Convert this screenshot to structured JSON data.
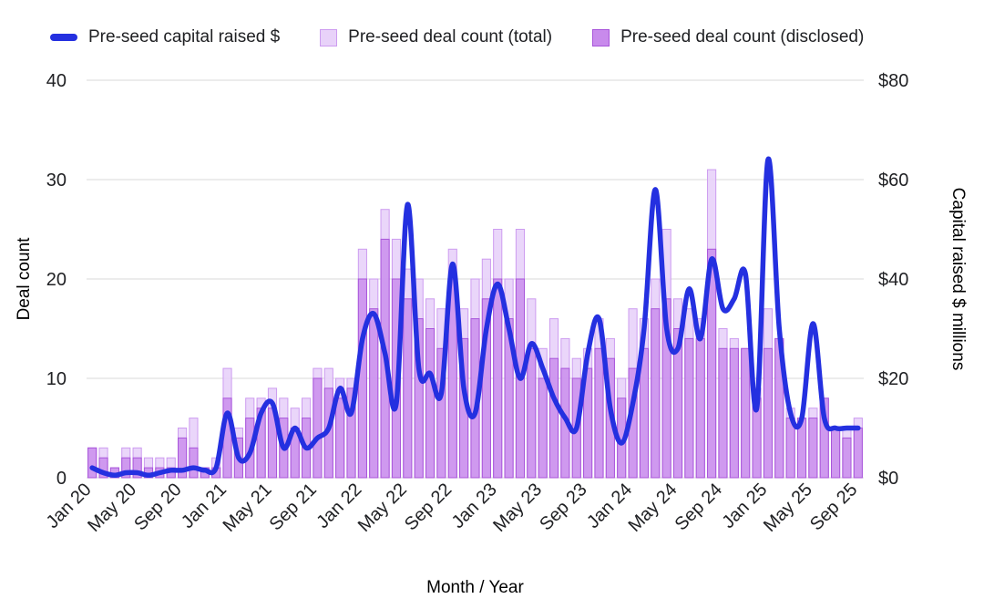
{
  "legend": {
    "line_label": "Pre-seed capital raised $",
    "total_label": "Pre-seed deal count (total)",
    "disclosed_label": "Pre-seed deal count (disclosed)"
  },
  "colors": {
    "line": "#2430e0",
    "bar_total_fill": "#e8d2f9",
    "bar_total_stroke": "#cd9cf0",
    "bar_disclosed_fill": "#c88aec",
    "bar_disclosed_stroke": "#a855da",
    "grid": "#d9d9d9",
    "text": "#202124"
  },
  "chart_data": {
    "type": "combo",
    "subtypes": [
      "line",
      "bar",
      "bar"
    ],
    "xlabel": "Month / Year",
    "ylabel_left": "Deal count",
    "ylabel_right": "Capital raised $ millions",
    "left_axis": {
      "min": 0,
      "max": 40,
      "ticks": [
        0,
        10,
        20,
        30,
        40
      ]
    },
    "right_axis": {
      "min": 0,
      "max": 80,
      "tick_labels": [
        "$0",
        "$20",
        "$40",
        "$60",
        "$80"
      ],
      "ticks": [
        0,
        20,
        40,
        60,
        80
      ]
    },
    "grid": true,
    "legend_position": "top",
    "x_tick_indices": [
      0,
      4,
      8,
      12,
      16,
      20,
      24,
      28,
      32,
      36,
      40,
      44,
      48,
      52,
      56,
      60,
      64,
      68
    ],
    "x_tick_labels": [
      "Jan 20",
      "May 20",
      "Sep 20",
      "Jan 21",
      "May 21",
      "Sep 21",
      "Jan 22",
      "May 22",
      "Sep 22",
      "Jan 23",
      "May 23",
      "Sep 23",
      "Jan 24",
      "May 24",
      "Sep 24",
      "Jan 25",
      "May 25",
      "Sep 25"
    ],
    "categories": [
      "Jan 20",
      "Feb 20",
      "Mar 20",
      "Apr 20",
      "May 20",
      "Jun 20",
      "Jul 20",
      "Aug 20",
      "Sep 20",
      "Oct 20",
      "Nov 20",
      "Dec 20",
      "Jan 21",
      "Feb 21",
      "Mar 21",
      "Apr 21",
      "May 21",
      "Jun 21",
      "Jul 21",
      "Aug 21",
      "Sep 21",
      "Oct 21",
      "Nov 21",
      "Dec 21",
      "Jan 22",
      "Feb 22",
      "Mar 22",
      "Apr 22",
      "May 22",
      "Jun 22",
      "Jul 22",
      "Aug 22",
      "Sep 22",
      "Oct 22",
      "Nov 22",
      "Dec 22",
      "Jan 23",
      "Feb 23",
      "Mar 23",
      "Apr 23",
      "May 23",
      "Jun 23",
      "Jul 23",
      "Aug 23",
      "Sep 23",
      "Oct 23",
      "Nov 23",
      "Dec 23",
      "Jan 24",
      "Feb 24",
      "Mar 24",
      "Apr 24",
      "May 24",
      "Jun 24",
      "Jul 24",
      "Aug 24",
      "Sep 24",
      "Oct 24",
      "Nov 24",
      "Dec 24",
      "Jan 25",
      "Feb 25",
      "Mar 25",
      "Apr 25",
      "May 25",
      "Jun 25",
      "Jul 25",
      "Aug 25",
      "Sep 25"
    ],
    "series": [
      {
        "name": "Pre-seed deal count (total)",
        "type": "bar",
        "axis": "left",
        "values": [
          3,
          3,
          1,
          3,
          3,
          2,
          2,
          2,
          5,
          6,
          1,
          2,
          11,
          5,
          8,
          8,
          9,
          8,
          7,
          8,
          11,
          11,
          10,
          10,
          23,
          20,
          27,
          24,
          21,
          20,
          18,
          17,
          23,
          17,
          20,
          22,
          25,
          20,
          25,
          18,
          13,
          16,
          14,
          12,
          13,
          16,
          14,
          10,
          17,
          16,
          20,
          25,
          18,
          17,
          16,
          31,
          15,
          14,
          13,
          9,
          17,
          14,
          7,
          6,
          7,
          8,
          5,
          5,
          6
        ]
      },
      {
        "name": "Pre-seed deal count (disclosed)",
        "type": "bar",
        "axis": "left",
        "values": [
          3,
          2,
          1,
          2,
          2,
          1,
          1,
          1,
          4,
          3,
          1,
          1,
          8,
          4,
          6,
          7,
          7,
          6,
          5,
          6,
          10,
          9,
          8,
          9,
          20,
          17,
          24,
          20,
          18,
          16,
          15,
          13,
          20,
          14,
          16,
          18,
          20,
          16,
          20,
          13,
          10,
          12,
          11,
          10,
          11,
          13,
          12,
          8,
          11,
          13,
          17,
          18,
          15,
          14,
          14,
          23,
          13,
          13,
          13,
          8,
          13,
          14,
          6,
          6,
          6,
          8,
          5,
          4,
          5
        ]
      },
      {
        "name": "Pre-seed capital raised $",
        "type": "line",
        "axis": "right",
        "values": [
          2,
          1,
          0.5,
          1,
          1,
          0.5,
          1,
          1.5,
          1.5,
          2,
          1.5,
          2,
          13,
          4,
          5,
          13,
          15,
          6,
          10,
          6,
          8,
          10,
          18,
          13,
          28,
          33,
          25,
          15,
          55,
          22,
          21,
          17,
          43,
          18,
          13,
          30,
          39,
          30,
          20,
          27,
          22,
          16,
          12,
          10,
          25,
          32,
          14,
          7,
          15,
          30,
          58,
          30,
          26,
          38,
          28,
          44,
          34,
          36,
          41,
          14,
          64,
          30,
          13,
          12,
          31,
          12,
          10,
          10,
          10
        ]
      }
    ]
  }
}
